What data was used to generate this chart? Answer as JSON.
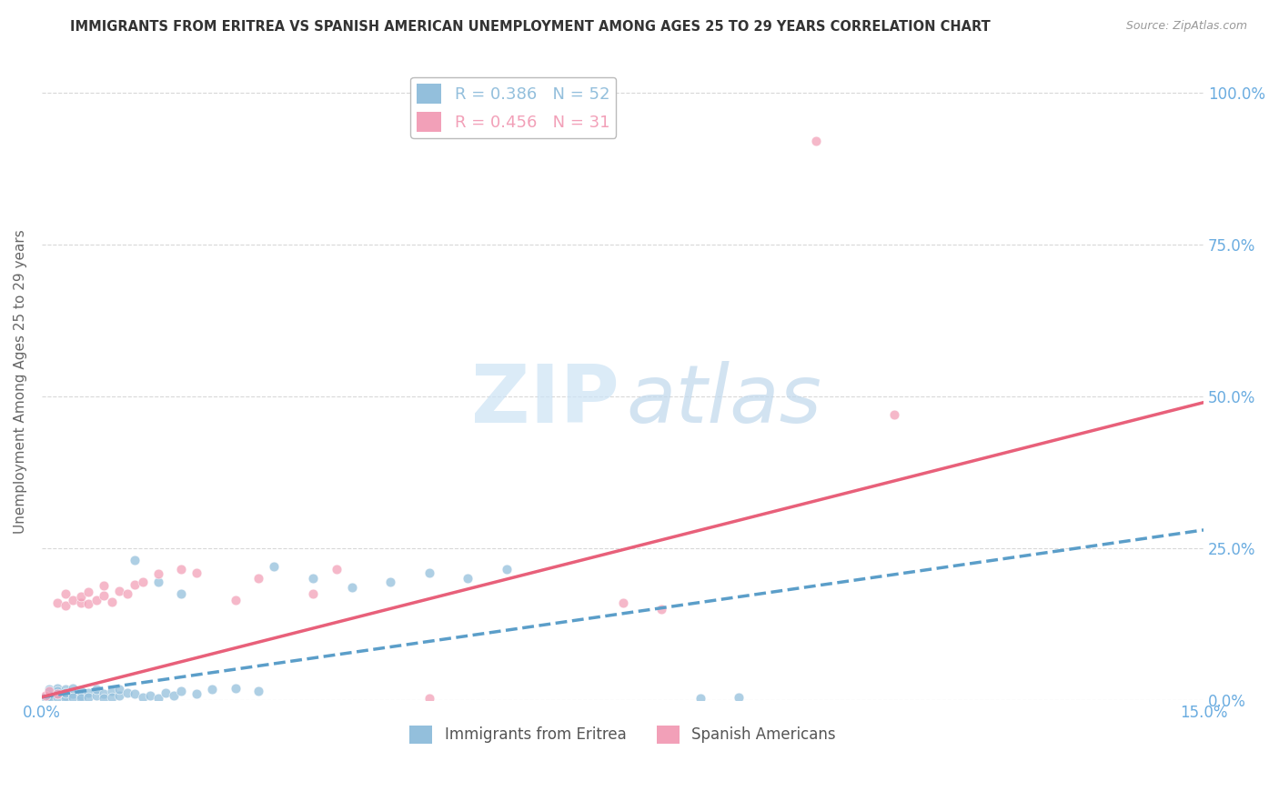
{
  "title": "IMMIGRANTS FROM ERITREA VS SPANISH AMERICAN UNEMPLOYMENT AMONG AGES 25 TO 29 YEARS CORRELATION CHART",
  "source": "Source: ZipAtlas.com",
  "ylabel": "Unemployment Among Ages 25 to 29 years",
  "xlim": [
    0.0,
    0.15
  ],
  "ylim": [
    0.0,
    1.05
  ],
  "yticks": [
    0.0,
    0.25,
    0.5,
    0.75,
    1.0
  ],
  "ytick_labels": [
    "0.0%",
    "25.0%",
    "50.0%",
    "75.0%",
    "100.0%"
  ],
  "xticks": [
    0.0,
    0.15
  ],
  "xtick_labels": [
    "0.0%",
    "15.0%"
  ],
  "legend_r1": "R = 0.386   N = 52",
  "legend_r2": "R = 0.456   N = 31",
  "blue_color": "#93bfdc",
  "pink_color": "#f2a0b8",
  "blue_line_color": "#5b9ec9",
  "pink_line_color": "#e8607a",
  "scatter_blue": [
    [
      0.0005,
      0.005
    ],
    [
      0.001,
      0.008
    ],
    [
      0.001,
      0.018
    ],
    [
      0.001,
      0.003
    ],
    [
      0.002,
      0.01
    ],
    [
      0.002,
      0.02
    ],
    [
      0.002,
      0.005
    ],
    [
      0.002,
      0.015
    ],
    [
      0.003,
      0.008
    ],
    [
      0.003,
      0.018
    ],
    [
      0.003,
      0.003
    ],
    [
      0.003,
      0.012
    ],
    [
      0.004,
      0.01
    ],
    [
      0.004,
      0.02
    ],
    [
      0.004,
      0.005
    ],
    [
      0.005,
      0.008
    ],
    [
      0.005,
      0.015
    ],
    [
      0.005,
      0.003
    ],
    [
      0.006,
      0.012
    ],
    [
      0.006,
      0.005
    ],
    [
      0.007,
      0.008
    ],
    [
      0.007,
      0.018
    ],
    [
      0.008,
      0.01
    ],
    [
      0.008,
      0.003
    ],
    [
      0.009,
      0.015
    ],
    [
      0.009,
      0.005
    ],
    [
      0.01,
      0.008
    ],
    [
      0.01,
      0.018
    ],
    [
      0.011,
      0.012
    ],
    [
      0.012,
      0.01
    ],
    [
      0.013,
      0.005
    ],
    [
      0.014,
      0.008
    ],
    [
      0.015,
      0.003
    ],
    [
      0.016,
      0.012
    ],
    [
      0.017,
      0.008
    ],
    [
      0.018,
      0.015
    ],
    [
      0.02,
      0.01
    ],
    [
      0.022,
      0.018
    ],
    [
      0.025,
      0.02
    ],
    [
      0.028,
      0.015
    ],
    [
      0.012,
      0.23
    ],
    [
      0.015,
      0.195
    ],
    [
      0.018,
      0.175
    ],
    [
      0.03,
      0.22
    ],
    [
      0.035,
      0.2
    ],
    [
      0.04,
      0.185
    ],
    [
      0.045,
      0.195
    ],
    [
      0.05,
      0.21
    ],
    [
      0.055,
      0.2
    ],
    [
      0.06,
      0.215
    ],
    [
      0.085,
      0.003
    ],
    [
      0.09,
      0.005
    ]
  ],
  "scatter_pink": [
    [
      0.0005,
      0.008
    ],
    [
      0.001,
      0.015
    ],
    [
      0.002,
      0.01
    ],
    [
      0.002,
      0.16
    ],
    [
      0.003,
      0.155
    ],
    [
      0.003,
      0.175
    ],
    [
      0.004,
      0.165
    ],
    [
      0.005,
      0.16
    ],
    [
      0.005,
      0.17
    ],
    [
      0.006,
      0.158
    ],
    [
      0.006,
      0.178
    ],
    [
      0.007,
      0.165
    ],
    [
      0.008,
      0.172
    ],
    [
      0.008,
      0.188
    ],
    [
      0.009,
      0.162
    ],
    [
      0.01,
      0.18
    ],
    [
      0.011,
      0.175
    ],
    [
      0.012,
      0.19
    ],
    [
      0.013,
      0.195
    ],
    [
      0.015,
      0.208
    ],
    [
      0.018,
      0.215
    ],
    [
      0.02,
      0.21
    ],
    [
      0.025,
      0.165
    ],
    [
      0.028,
      0.2
    ],
    [
      0.035,
      0.175
    ],
    [
      0.038,
      0.215
    ],
    [
      0.05,
      0.003
    ],
    [
      0.075,
      0.16
    ],
    [
      0.08,
      0.15
    ],
    [
      0.1,
      0.92
    ],
    [
      0.11,
      0.47
    ]
  ],
  "blue_trend_x": [
    0.0,
    0.15
  ],
  "blue_trend_y": [
    0.005,
    0.28
  ],
  "pink_trend_x": [
    0.0,
    0.15
  ],
  "pink_trend_y": [
    0.005,
    0.49
  ],
  "background_color": "#ffffff",
  "grid_color": "#d8d8d8",
  "tick_color": "#6aace0",
  "watermark_zip_color": "#cce3f5",
  "watermark_atlas_color": "#c0d8ec"
}
